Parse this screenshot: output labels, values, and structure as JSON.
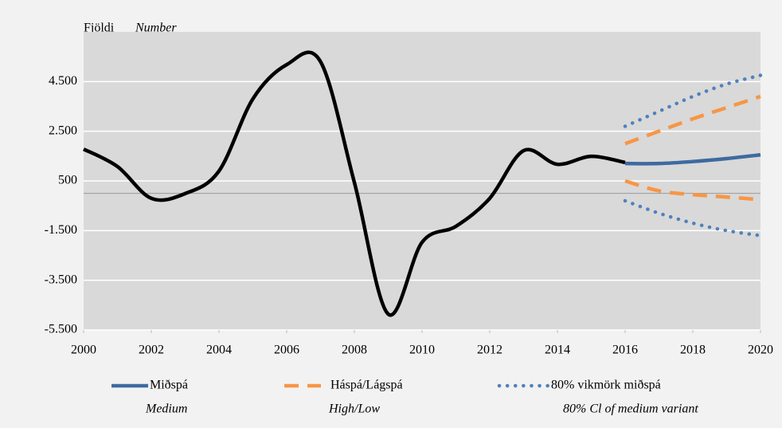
{
  "chart_data": {
    "type": "line",
    "y_label": "Fjöldi",
    "y_label_en": "Number",
    "xlim": [
      2000,
      2020
    ],
    "xticks": [
      2000,
      2002,
      2004,
      2006,
      2008,
      2010,
      2012,
      2014,
      2016,
      2018,
      2020
    ],
    "ylim": [
      -5500,
      6500
    ],
    "yticks": [
      {
        "value": -5500,
        "label": "-5.500"
      },
      {
        "value": -3500,
        "label": "-3.500"
      },
      {
        "value": -1500,
        "label": "-1.500"
      },
      500,
      {
        "value": 2500,
        "label": "2.500"
      },
      {
        "value": 4500,
        "label": "4.500"
      }
    ],
    "grid": true,
    "zero_line": true,
    "series": [
      {
        "color": "#000000",
        "style": "solid",
        "x": [
          2000,
          2001,
          2002,
          2003,
          2004,
          2005,
          2006,
          2007,
          2008,
          2009,
          2010,
          2011,
          2012,
          2013,
          2014,
          2015,
          2016
        ],
        "values": [
          1780,
          1080,
          -200,
          -10,
          900,
          3800,
          5180,
          5300,
          440,
          -4860,
          -1970,
          -1330,
          -200,
          1720,
          1170,
          1490,
          1240
        ]
      },
      {
        "name": "Miðspá",
        "subtitle": "Medium",
        "color": "#3e6aa0",
        "style": "solid",
        "x": [
          2016,
          2017,
          2018,
          2019,
          2020
        ],
        "values": [
          1200,
          1200,
          1280,
          1400,
          1550
        ]
      },
      {
        "name": "Háspá/Lágspá",
        "subtitle": "High/Low",
        "color": "#f79646",
        "style": "dashed",
        "x": [
          2016,
          2017,
          2018,
          2019,
          2020
        ],
        "values": [
          2000,
          2500,
          3000,
          3450,
          3900
        ],
        "low": [
          500,
          100,
          -50,
          -150,
          -250
        ]
      },
      {
        "name": "80% vikmörk miðspá",
        "subtitle": "80% Cl of medium variant",
        "color": "#4f81bd",
        "style": "dotted",
        "x": [
          2016,
          2017,
          2018,
          2019,
          2020
        ],
        "values": [
          2700,
          3300,
          3900,
          4400,
          4750
        ],
        "low": [
          -300,
          -800,
          -1200,
          -1500,
          -1700
        ]
      }
    ]
  }
}
